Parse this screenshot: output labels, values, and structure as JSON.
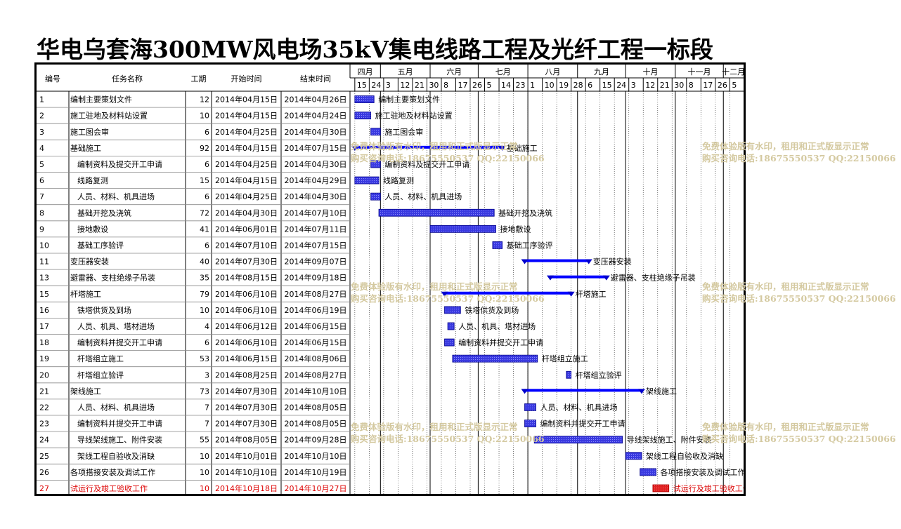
{
  "title": "华电乌套海300MW风电场35kV集电线路工程及光纤工程一标段",
  "table": {
    "headers": {
      "id": "编号",
      "name": "任务名称",
      "duration": "工期",
      "start": "开始时间",
      "end": "结束时间"
    }
  },
  "colors": {
    "bar": "#2b2bd6",
    "bar_dark": "#0000cc",
    "summary": "#0000ff",
    "highlight": "#dd0000",
    "watermark": "#d4c9a0"
  },
  "chart_data": {
    "type": "gantt",
    "months": [
      "四月",
      "五月",
      "六月",
      "七月",
      "八月",
      "九月",
      "十月",
      "十一月",
      "十二月"
    ],
    "week_ticks": [
      "15",
      "24",
      "3",
      "12",
      "21",
      "30",
      "8",
      "17",
      "26",
      "5",
      "14",
      "23",
      "1",
      "10",
      "19",
      "28",
      "6",
      "15",
      "24",
      "3",
      "12",
      "21",
      "30",
      "8",
      "17",
      "26",
      "5",
      "14"
    ],
    "tasks": [
      {
        "id": "1",
        "name": "编制主要策划文件",
        "duration": "12",
        "start": "2014年04月15日",
        "end": "2014年04月26日",
        "indent": false,
        "summary": false,
        "highlight": false
      },
      {
        "id": "2",
        "name": "施工驻地及材料站设置",
        "duration": "10",
        "start": "2014年04月15日",
        "end": "2014年04月24日",
        "indent": false,
        "summary": false,
        "highlight": false
      },
      {
        "id": "3",
        "name": "施工图会审",
        "duration": "6",
        "start": "2014年04月25日",
        "end": "2014年04月30日",
        "indent": false,
        "summary": false,
        "highlight": false
      },
      {
        "id": "4",
        "name": "基础施工",
        "duration": "92",
        "start": "2014年04月15日",
        "end": "2014年07月15日",
        "indent": false,
        "summary": true,
        "highlight": false
      },
      {
        "id": "5",
        "name": "编制资料及提交开工申请",
        "duration": "6",
        "start": "2014年04月25日",
        "end": "2014年04月30日",
        "indent": true,
        "summary": false,
        "highlight": false
      },
      {
        "id": "6",
        "name": "线路复测",
        "duration": "15",
        "start": "2014年04月15日",
        "end": "2014年04月29日",
        "indent": true,
        "summary": false,
        "highlight": false
      },
      {
        "id": "7",
        "name": "人员、材料、机具进场",
        "duration": "6",
        "start": "2014年04月25日",
        "end": "2014年04月30日",
        "indent": true,
        "summary": false,
        "highlight": false
      },
      {
        "id": "8",
        "name": "基础开挖及浇筑",
        "duration": "72",
        "start": "2014年04月30日",
        "end": "2014年07月10日",
        "indent": true,
        "summary": false,
        "highlight": false
      },
      {
        "id": "9",
        "name": "接地敷设",
        "duration": "41",
        "start": "2014年06月01日",
        "end": "2014年07月11日",
        "indent": true,
        "summary": false,
        "highlight": false
      },
      {
        "id": "10",
        "name": "基础工序验评",
        "duration": "6",
        "start": "2014年07月10日",
        "end": "2014年07月15日",
        "indent": true,
        "summary": false,
        "highlight": false
      },
      {
        "id": "11",
        "name": "变压器安装",
        "duration": "40",
        "start": "2014年07月30日",
        "end": "2014年09月07日",
        "indent": false,
        "summary": true,
        "highlight": false
      },
      {
        "id": "13",
        "name": "避雷器、支柱绝缘子吊装",
        "duration": "35",
        "start": "2014年08月15日",
        "end": "2014年09月18日",
        "indent": false,
        "summary": true,
        "highlight": false
      },
      {
        "id": "15",
        "name": "杆塔施工",
        "duration": "79",
        "start": "2014年06月10日",
        "end": "2014年08月27日",
        "indent": false,
        "summary": true,
        "highlight": false
      },
      {
        "id": "16",
        "name": "铁塔供货及到场",
        "duration": "10",
        "start": "2014年06月10日",
        "end": "2014年06月19日",
        "indent": true,
        "summary": false,
        "highlight": false
      },
      {
        "id": "17",
        "name": "人员、机具、塔材进场",
        "duration": "4",
        "start": "2014年06月12日",
        "end": "2014年06月15日",
        "indent": true,
        "summary": false,
        "highlight": false
      },
      {
        "id": "18",
        "name": "编制资料并提交开工申请",
        "duration": "6",
        "start": "2014年06月10日",
        "end": "2014年06月15日",
        "indent": true,
        "summary": false,
        "highlight": false
      },
      {
        "id": "19",
        "name": "杆塔组立施工",
        "duration": "53",
        "start": "2014年06月15日",
        "end": "2014年08月06日",
        "indent": true,
        "summary": false,
        "highlight": false
      },
      {
        "id": "20",
        "name": "杆塔组立验评",
        "duration": "3",
        "start": "2014年08月25日",
        "end": "2014年08月27日",
        "indent": true,
        "summary": false,
        "highlight": false
      },
      {
        "id": "21",
        "name": "架线施工",
        "duration": "73",
        "start": "2014年07月30日",
        "end": "2014年10月10日",
        "indent": false,
        "summary": true,
        "highlight": false
      },
      {
        "id": "22",
        "name": "人员、材料、机具进场",
        "duration": "7",
        "start": "2014年07月30日",
        "end": "2014年08月05日",
        "indent": true,
        "summary": false,
        "highlight": false
      },
      {
        "id": "23",
        "name": "编制资料并提交开工申请",
        "duration": "7",
        "start": "2014年07月30日",
        "end": "2014年08月05日",
        "indent": true,
        "summary": false,
        "highlight": false
      },
      {
        "id": "24",
        "name": "导线架线施工、附件安装",
        "duration": "55",
        "start": "2014年08月05日",
        "end": "2014年09月28日",
        "indent": true,
        "summary": false,
        "highlight": false
      },
      {
        "id": "25",
        "name": "架线工程自验收及消缺",
        "duration": "10",
        "start": "2014年10月01日",
        "end": "2014年10月10日",
        "indent": true,
        "summary": false,
        "highlight": false
      },
      {
        "id": "26",
        "name": "各项搭接安装及调试工作",
        "duration": "10",
        "start": "2014年10月10日",
        "end": "2014年10月19日",
        "indent": false,
        "summary": false,
        "highlight": false
      },
      {
        "id": "27",
        "name": "试运行及竣工验收工作",
        "duration": "10",
        "start": "2014年10月18日",
        "end": "2014年10月27日",
        "indent": false,
        "summary": false,
        "highlight": true
      }
    ]
  },
  "watermark": {
    "line1": "免费体验版有水印，租用和正式版显示正常",
    "line2": "购买咨询电话:18675550537 QQ:22150066"
  }
}
